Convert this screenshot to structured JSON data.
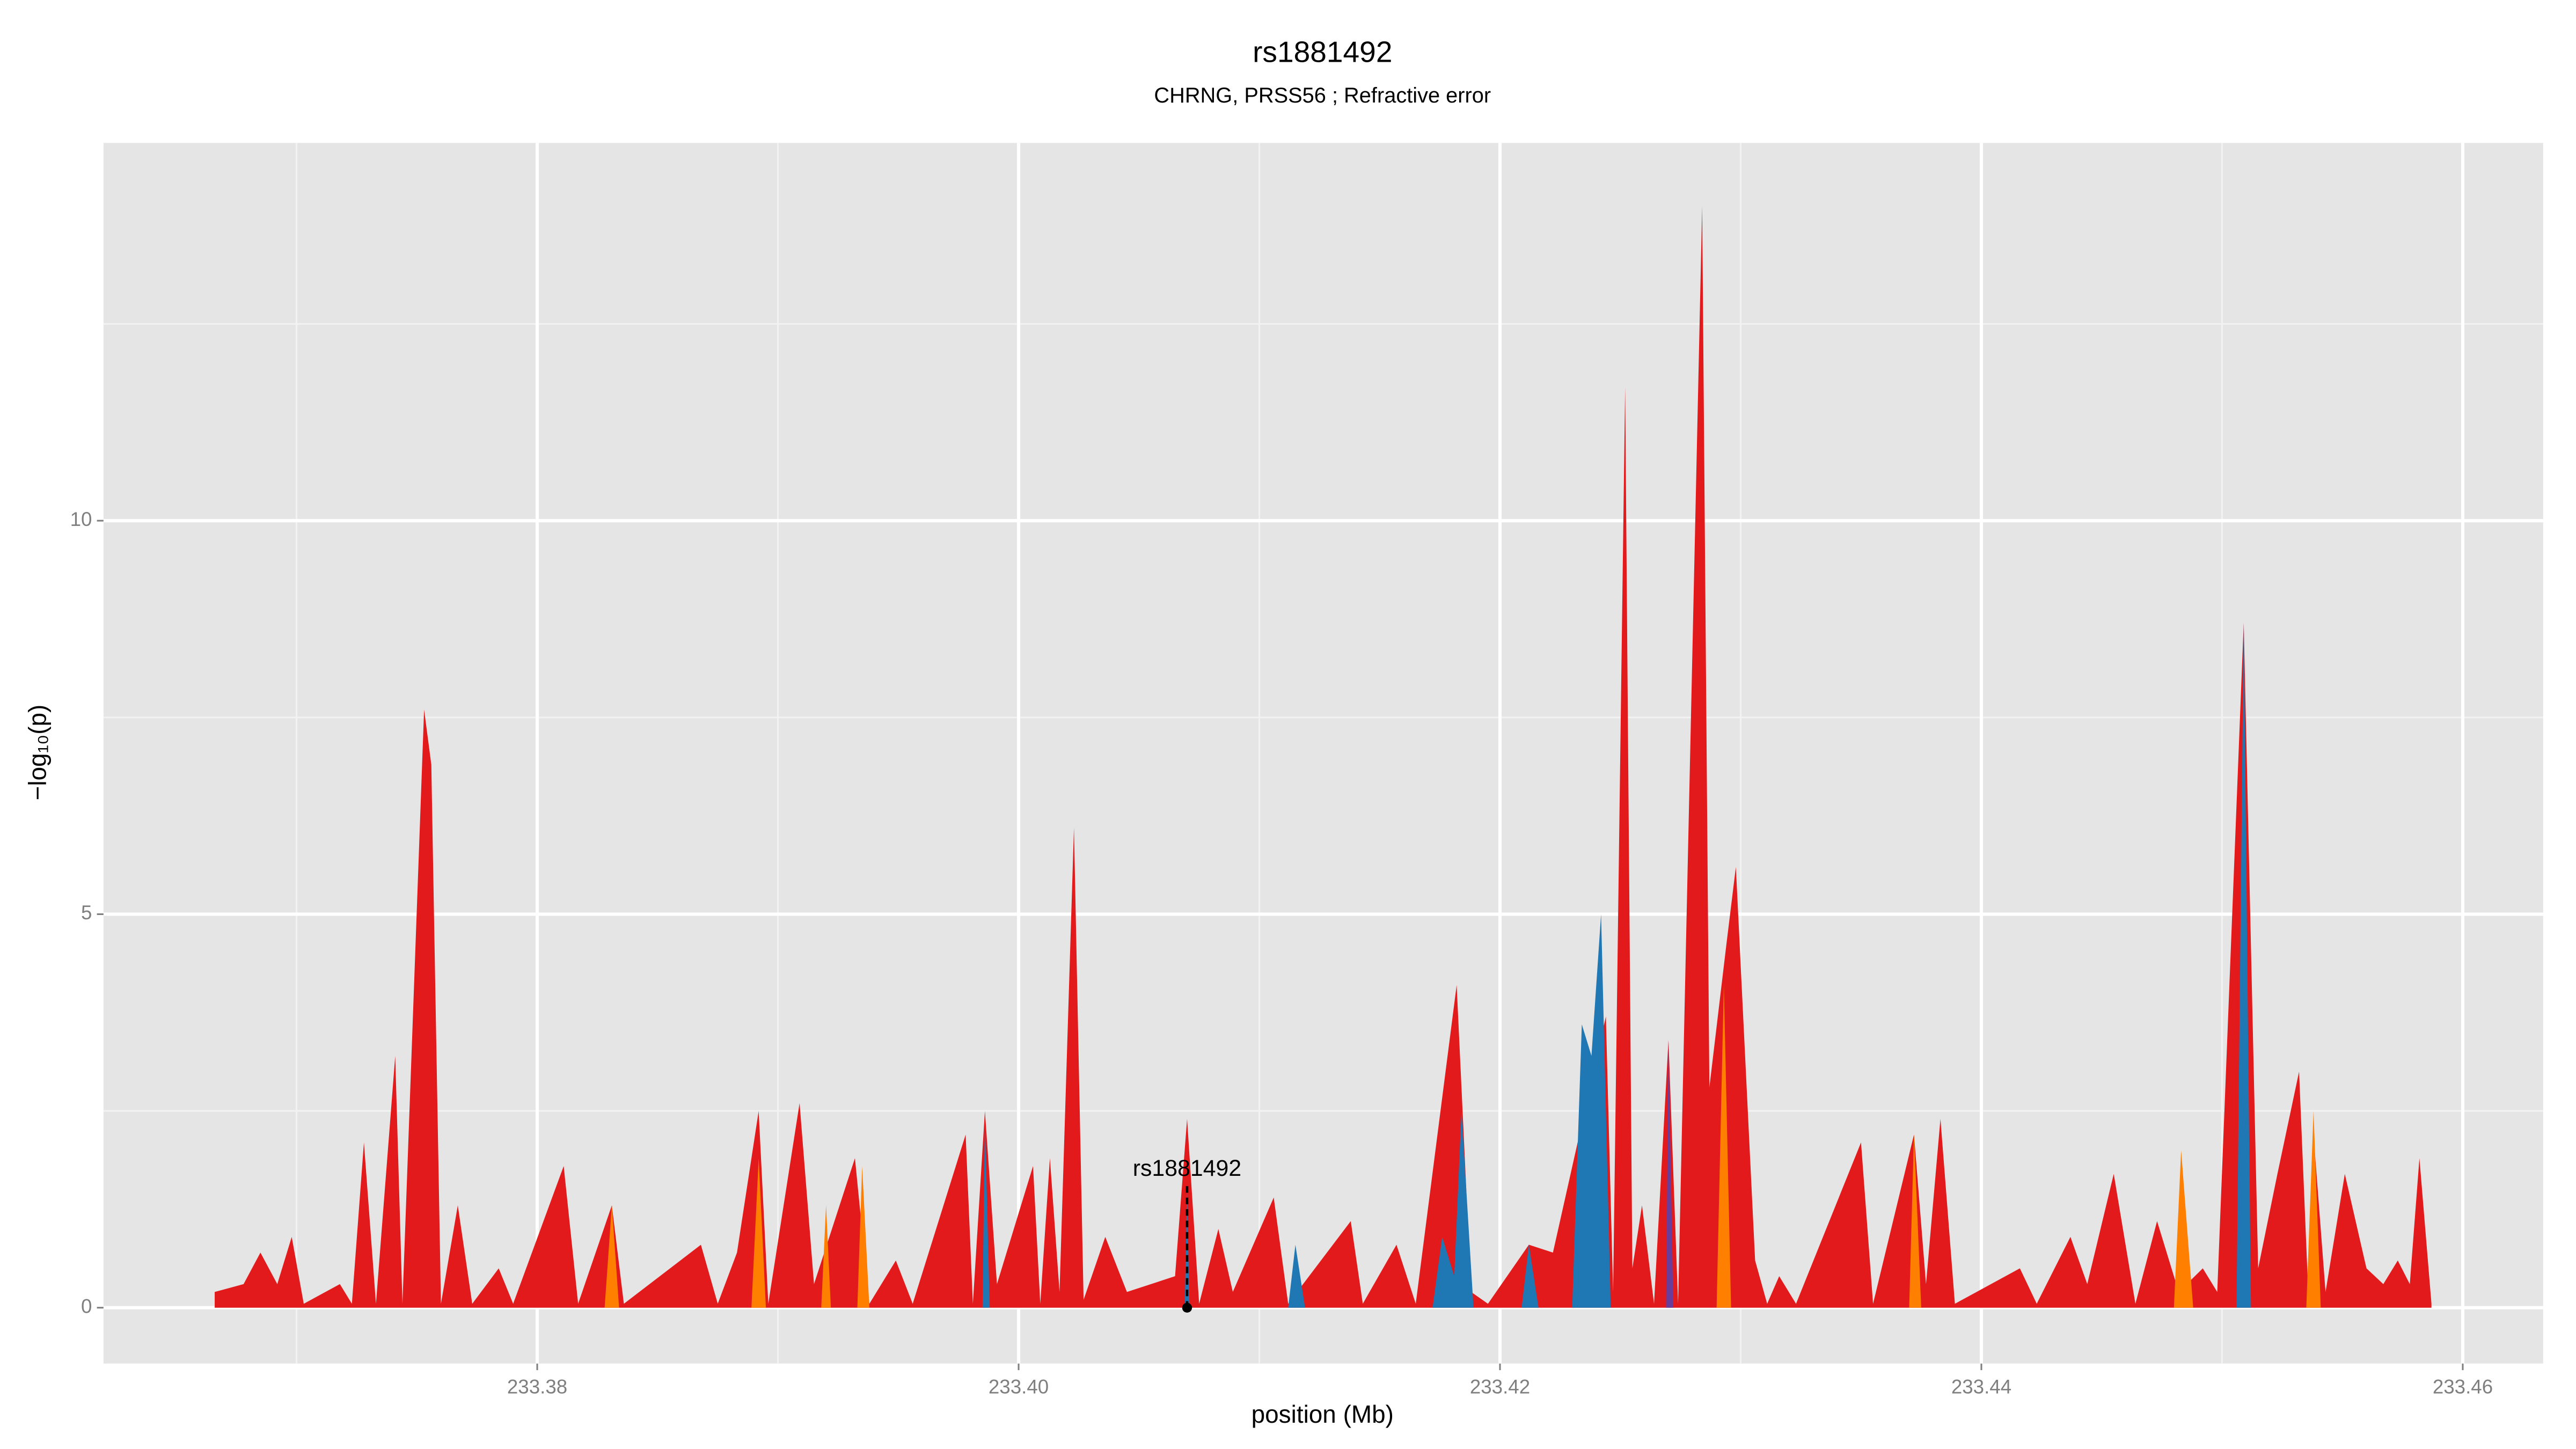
{
  "chart_data": {
    "type": "area",
    "title": "rs1881492",
    "subtitle": "CHRNG, PRSS56 ; Refractive error",
    "x_label": "position (Mb)",
    "y_label": "−log₁₀(p)",
    "xlim": [
      233.36198,
      233.46334
    ],
    "ylim": [
      -0.71,
      14.8
    ],
    "xticks": [
      233.38,
      {
        "value": 233.4,
        "label": "233.40"
      },
      233.42,
      233.44,
      233.46
    ],
    "yticks": [
      0,
      5,
      10
    ],
    "x_minor_grid": [
      233.37,
      233.39,
      233.41,
      233.43,
      233.45
    ],
    "y_minor_grid": [
      2.5,
      7.5,
      12.5
    ],
    "grid": true,
    "highlight": {
      "label": "rs1881492",
      "x": 233.407,
      "y": 0
    },
    "series": [
      {
        "color": "#e31a1c",
        "x": [
          233.3666,
          233.3678,
          233.3685,
          233.3692,
          233.3698,
          233.3703,
          233.3718,
          233.3723,
          233.3728,
          233.3733,
          233.3741,
          233.3744,
          233.3753,
          233.3756,
          233.376,
          233.3767,
          233.3773,
          233.3784,
          233.379,
          233.3811,
          233.3817,
          233.3831,
          233.3836,
          233.3868,
          233.3875,
          233.3883,
          233.3892,
          233.3896,
          233.3909,
          233.3915,
          233.3932,
          233.3938,
          233.3949,
          233.3956,
          233.3978,
          233.3981,
          233.3986,
          233.3991,
          233.4006,
          233.4009,
          233.4013,
          233.4017,
          233.4023,
          233.4027,
          233.4036,
          233.4045,
          233.4055,
          233.4065,
          233.407,
          233.4075,
          233.4083,
          233.4089,
          233.4106,
          233.4112,
          233.4138,
          233.4143,
          233.4157,
          233.4165,
          233.4182,
          233.4188,
          233.4195,
          233.4212,
          233.4222,
          233.4244,
          233.4247,
          233.4252,
          233.4255,
          233.4259,
          233.4264,
          233.427,
          233.4274,
          233.4284,
          233.4287,
          233.4294,
          233.4298,
          233.4306,
          233.4311,
          233.4316,
          233.4323,
          233.435,
          233.4355,
          233.4372,
          233.4377,
          233.4383,
          233.4389,
          233.4416,
          233.4423,
          233.4437,
          233.4444,
          233.4455,
          233.4464,
          233.4473,
          233.4482,
          233.4492,
          233.4498,
          233.4509,
          233.4515,
          233.4523,
          233.4532,
          233.4536,
          233.4538,
          233.4543,
          233.4551,
          233.456,
          233.4567,
          233.4573,
          233.4578,
          233.4582,
          233.4587
        ],
        "values": [
          0.2,
          0.3,
          0.7,
          0.3,
          0.9,
          0.05,
          0.3,
          0.05,
          2.1,
          0.05,
          3.2,
          0.05,
          7.6,
          6.9,
          0.05,
          1.3,
          0.05,
          0.5,
          0.05,
          1.8,
          0.05,
          1.3,
          0.05,
          0.8,
          0.05,
          0.7,
          2.5,
          0.05,
          2.6,
          0.3,
          1.9,
          0.05,
          0.6,
          0.05,
          2.2,
          0.05,
          2.5,
          0.3,
          1.8,
          0.05,
          1.9,
          0.2,
          6.1,
          0.1,
          0.9,
          0.2,
          0.3,
          0.4,
          2.4,
          0.05,
          1.0,
          0.2,
          1.4,
          0.05,
          1.1,
          0.05,
          0.8,
          0.05,
          4.1,
          0.2,
          0.05,
          0.8,
          0.7,
          3.7,
          0.2,
          11.7,
          0.5,
          1.3,
          0.05,
          3.4,
          0.05,
          14.0,
          2.8,
          4.6,
          5.6,
          0.6,
          0.05,
          0.4,
          0.05,
          2.1,
          0.05,
          2.2,
          0.3,
          2.4,
          0.05,
          0.5,
          0.05,
          0.9,
          0.3,
          1.7,
          0.05,
          1.1,
          0.2,
          0.5,
          0.2,
          8.7,
          0.5,
          1.7,
          3.0,
          0.05,
          2.2,
          0.2,
          1.7,
          0.5,
          0.3,
          0.6,
          0.3,
          1.9,
          0.05
        ]
      },
      {
        "color": "#1f78b4",
        "x": [
          233.3985,
          233.3986,
          233.3988,
          233.4,
          233.4069,
          233.407,
          233.4071,
          233.409,
          233.4112,
          233.4115,
          233.4119,
          233.414,
          233.4172,
          233.4176,
          233.4181,
          233.4184,
          233.4189,
          233.42,
          233.4209,
          233.4212,
          233.4216,
          233.422,
          233.423,
          233.4234,
          233.4238,
          233.4242,
          233.4246,
          233.44,
          233.4506,
          233.4509,
          233.4512
        ],
        "values": [
          0,
          2.4,
          0,
          null,
          0,
          1.5,
          0,
          null,
          0,
          0.8,
          0,
          null,
          0,
          0.9,
          0.4,
          2.5,
          0,
          null,
          0,
          0.8,
          0,
          null,
          0,
          3.6,
          3.2,
          5.0,
          0,
          null,
          0,
          8.7,
          0
        ]
      },
      {
        "color": "#ff7f00",
        "x": [
          233.3828,
          233.3831,
          233.3834,
          233.386,
          233.3889,
          233.3892,
          233.3895,
          233.3905,
          233.3918,
          233.392,
          233.3922,
          233.3928,
          233.3933,
          233.3935,
          233.3938,
          233.41,
          233.429,
          233.4293,
          233.4296,
          233.433,
          233.437,
          233.4372,
          233.4375,
          233.442,
          233.448,
          233.4483,
          233.4488,
          233.451,
          233.4535,
          233.4538,
          233.4541
        ],
        "values": [
          0,
          1.3,
          0,
          null,
          0,
          1.9,
          0,
          null,
          0,
          1.3,
          0,
          null,
          0,
          1.8,
          0,
          null,
          0,
          4.1,
          0,
          null,
          0,
          2.2,
          0,
          null,
          0,
          2.0,
          0,
          null,
          0,
          2.5,
          0
        ]
      },
      {
        "color": "#6a3d9a",
        "x": [
          233.4269,
          233.427,
          233.4272
        ],
        "values": [
          0,
          3.4,
          0
        ]
      }
    ]
  }
}
